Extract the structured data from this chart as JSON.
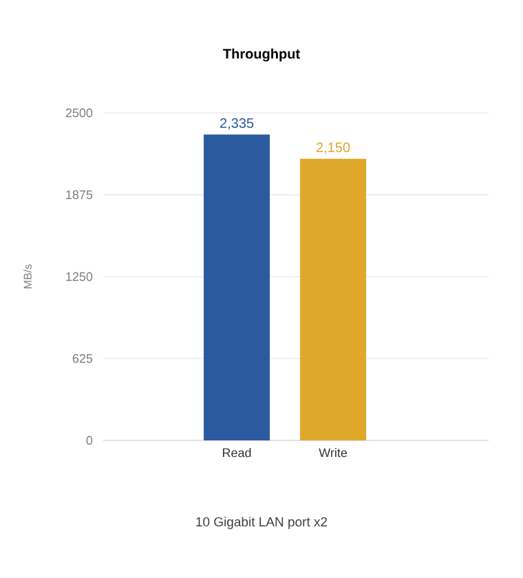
{
  "chart_data": {
    "type": "bar",
    "title": "Throughput",
    "xlabel": "10 Gigabit LAN port x2",
    "ylabel": "MB/s",
    "categories": [
      "Read",
      "Write"
    ],
    "values": [
      2335,
      2150
    ],
    "colors": [
      "#2b5a9e",
      "#e0a82a"
    ],
    "value_labels": [
      "2,335",
      "2,150"
    ],
    "ylim": [
      0,
      2500
    ],
    "yticks": [
      0,
      625,
      1250,
      1875,
      2500
    ],
    "grid": "y"
  }
}
